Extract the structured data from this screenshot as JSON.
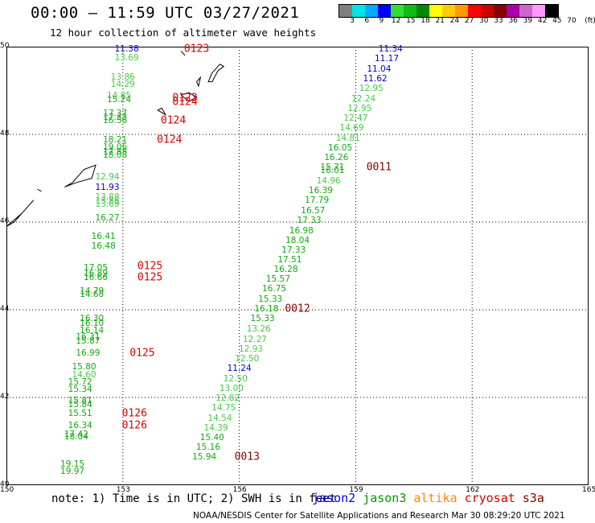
{
  "header": {
    "title": "00:00 – 11:59 UTC 03/27/2021",
    "subtitle": "12 hour collection of altimeter wave heights"
  },
  "colorbar": {
    "colors": [
      "#7f7f7f",
      "#00e5e5",
      "#00aaff",
      "#0000ff",
      "#33dd33",
      "#11bb11",
      "#008800",
      "#ffff00",
      "#ffcc00",
      "#ff9900",
      "#ff0000",
      "#cc0000",
      "#880000",
      "#aa00aa",
      "#cc66cc",
      "#ff99ff",
      "#000000"
    ],
    "labels": [
      "3",
      "6",
      "9",
      "12",
      "15",
      "18",
      "21",
      "24",
      "27",
      "30",
      "33",
      "36",
      "39",
      "42",
      "45",
      "70",
      "(ft)"
    ]
  },
  "chart_data": {
    "type": "scatter",
    "xlim": [
      150,
      165
    ],
    "ylim": [
      40,
      50
    ],
    "x_ticks": [
      "150",
      "153",
      "156",
      "159",
      "162",
      "165"
    ],
    "y_ticks": [
      "50",
      "48",
      "46",
      "44",
      "42",
      "40"
    ],
    "x_tick_values": [
      150,
      153,
      156,
      159,
      162,
      165
    ],
    "y_tick_values": [
      50,
      48,
      46,
      44,
      42,
      40
    ],
    "grid": true,
    "series": [
      {
        "name": "jason2",
        "color": "#0000ff",
        "points": []
      },
      {
        "name": "jason3",
        "color": "#009900",
        "points": []
      },
      {
        "name": "altika",
        "color": "#ff8800",
        "points": []
      },
      {
        "name": "cryosat",
        "color": "#dd0000",
        "points": []
      },
      {
        "name": "s3a",
        "color": "#880000",
        "points": []
      }
    ],
    "track_points": [
      {
        "lon": 153.1,
        "lat": 49.94,
        "v": "11.38",
        "c": "#0000cc"
      },
      {
        "lon": 153.1,
        "lat": 49.74,
        "v": "13.69",
        "c": "#44cc44"
      },
      {
        "lon": 153.0,
        "lat": 49.3,
        "v": "13.86",
        "c": "#44cc44"
      },
      {
        "lon": 153.0,
        "lat": 49.13,
        "v": "14.29",
        "c": "#44cc44"
      },
      {
        "lon": 152.9,
        "lat": 48.88,
        "v": "14.85",
        "c": "#44cc44"
      },
      {
        "lon": 152.9,
        "lat": 48.78,
        "v": "15.24",
        "c": "#11aa11"
      },
      {
        "lon": 152.8,
        "lat": 48.48,
        "v": "17.37",
        "c": "#11aa11"
      },
      {
        "lon": 152.8,
        "lat": 48.38,
        "v": "17.33",
        "c": "#11aa11"
      },
      {
        "lon": 152.8,
        "lat": 48.31,
        "v": "16.56",
        "c": "#11aa11"
      },
      {
        "lon": 152.8,
        "lat": 47.88,
        "v": "18.21",
        "c": "#11aa11"
      },
      {
        "lon": 152.8,
        "lat": 47.7,
        "v": "19.06",
        "c": "#11aa11"
      },
      {
        "lon": 152.8,
        "lat": 47.6,
        "v": "17.88",
        "c": "#11aa11"
      },
      {
        "lon": 152.8,
        "lat": 47.53,
        "v": "18.08",
        "c": "#11aa11"
      },
      {
        "lon": 152.6,
        "lat": 47.03,
        "v": "12.94",
        "c": "#44cc44"
      },
      {
        "lon": 152.6,
        "lat": 46.78,
        "v": "11.93",
        "c": "#0000cc"
      },
      {
        "lon": 152.6,
        "lat": 46.56,
        "v": "13.88",
        "c": "#44cc44"
      },
      {
        "lon": 152.6,
        "lat": 46.48,
        "v": "13.86",
        "c": "#44cc44"
      },
      {
        "lon": 152.6,
        "lat": 46.4,
        "v": "13.69",
        "c": "#44cc44"
      },
      {
        "lon": 152.6,
        "lat": 46.09,
        "v": "16.27",
        "c": "#11aa11"
      },
      {
        "lon": 152.5,
        "lat": 45.67,
        "v": "16.41",
        "c": "#11aa11"
      },
      {
        "lon": 152.5,
        "lat": 45.45,
        "v": "16.48",
        "c": "#11aa11"
      },
      {
        "lon": 152.3,
        "lat": 44.96,
        "v": "17.05",
        "c": "#11aa11"
      },
      {
        "lon": 152.3,
        "lat": 44.82,
        "v": "16.89",
        "c": "#11aa11"
      },
      {
        "lon": 152.3,
        "lat": 44.74,
        "v": "16.66",
        "c": "#11aa11"
      },
      {
        "lon": 152.2,
        "lat": 44.42,
        "v": "14.79",
        "c": "#11aa11"
      },
      {
        "lon": 152.2,
        "lat": 44.34,
        "v": "14.68",
        "c": "#11aa11"
      },
      {
        "lon": 152.2,
        "lat": 43.8,
        "v": "16.30",
        "c": "#11aa11"
      },
      {
        "lon": 152.2,
        "lat": 43.69,
        "v": "16.10",
        "c": "#11aa11"
      },
      {
        "lon": 152.2,
        "lat": 43.53,
        "v": "16.14",
        "c": "#11aa11"
      },
      {
        "lon": 152.1,
        "lat": 43.38,
        "v": "16.31",
        "c": "#11aa11"
      },
      {
        "lon": 152.1,
        "lat": 43.29,
        "v": "15.87",
        "c": "#11aa11"
      },
      {
        "lon": 152.1,
        "lat": 43.01,
        "v": "16.99",
        "c": "#11aa11"
      },
      {
        "lon": 152.0,
        "lat": 42.7,
        "v": "15.80",
        "c": "#11aa11"
      },
      {
        "lon": 152.0,
        "lat": 42.52,
        "v": "14.60",
        "c": "#44cc44"
      },
      {
        "lon": 151.9,
        "lat": 42.34,
        "v": "15.72",
        "c": "#11aa11"
      },
      {
        "lon": 151.9,
        "lat": 42.19,
        "v": "15.34",
        "c": "#11aa11"
      },
      {
        "lon": 151.9,
        "lat": 41.93,
        "v": "15.81",
        "c": "#11aa11"
      },
      {
        "lon": 151.9,
        "lat": 41.84,
        "v": "15.84",
        "c": "#11aa11"
      },
      {
        "lon": 151.9,
        "lat": 41.64,
        "v": "15.51",
        "c": "#11aa11"
      },
      {
        "lon": 151.9,
        "lat": 41.36,
        "v": "16.34",
        "c": "#11aa11"
      },
      {
        "lon": 151.8,
        "lat": 41.16,
        "v": "17.42",
        "c": "#11aa11"
      },
      {
        "lon": 151.8,
        "lat": 41.1,
        "v": "18.04",
        "c": "#11aa11"
      },
      {
        "lon": 151.7,
        "lat": 40.47,
        "v": "19.15",
        "c": "#11aa11"
      },
      {
        "lon": 151.7,
        "lat": 40.31,
        "v": "19.97",
        "c": "#11aa11"
      },
      {
        "lon": 159.9,
        "lat": 49.94,
        "v": "11.34",
        "c": "#0000cc"
      },
      {
        "lon": 159.8,
        "lat": 49.72,
        "v": "11.17",
        "c": "#0000cc"
      },
      {
        "lon": 159.6,
        "lat": 49.49,
        "v": "11.04",
        "c": "#0000cc"
      },
      {
        "lon": 159.5,
        "lat": 49.26,
        "v": "11.62",
        "c": "#0000cc"
      },
      {
        "lon": 159.4,
        "lat": 49.04,
        "v": "12.95",
        "c": "#44cc44"
      },
      {
        "lon": 159.2,
        "lat": 48.81,
        "v": "12.24",
        "c": "#44cc44"
      },
      {
        "lon": 159.1,
        "lat": 48.59,
        "v": "12.95",
        "c": "#44cc44"
      },
      {
        "lon": 159.0,
        "lat": 48.36,
        "v": "12.47",
        "c": "#44cc44"
      },
      {
        "lon": 158.9,
        "lat": 48.14,
        "v": "14.69",
        "c": "#44cc44"
      },
      {
        "lon": 158.8,
        "lat": 47.91,
        "v": "14.81",
        "c": "#44cc44"
      },
      {
        "lon": 158.6,
        "lat": 47.69,
        "v": "16.05",
        "c": "#11aa11"
      },
      {
        "lon": 158.5,
        "lat": 47.46,
        "v": "16.26",
        "c": "#11aa11"
      },
      {
        "lon": 158.4,
        "lat": 47.24,
        "v": "15.71",
        "c": "#11aa11"
      },
      {
        "lon": 158.4,
        "lat": 47.17,
        "v": "16.01",
        "c": "#11aa11"
      },
      {
        "lon": 158.3,
        "lat": 46.94,
        "v": "14.96",
        "c": "#44cc44"
      },
      {
        "lon": 158.1,
        "lat": 46.71,
        "v": "16.39",
        "c": "#11aa11"
      },
      {
        "lon": 158.0,
        "lat": 46.49,
        "v": "17.79",
        "c": "#11aa11"
      },
      {
        "lon": 157.9,
        "lat": 46.26,
        "v": "16.57",
        "c": "#11aa11"
      },
      {
        "lon": 157.8,
        "lat": 46.03,
        "v": "17.33",
        "c": "#11aa11"
      },
      {
        "lon": 157.6,
        "lat": 45.8,
        "v": "16.98",
        "c": "#11aa11"
      },
      {
        "lon": 157.5,
        "lat": 45.57,
        "v": "18.04",
        "c": "#11aa11"
      },
      {
        "lon": 157.4,
        "lat": 45.35,
        "v": "17.33",
        "c": "#11aa11"
      },
      {
        "lon": 157.3,
        "lat": 45.13,
        "v": "17.51",
        "c": "#11aa11"
      },
      {
        "lon": 157.2,
        "lat": 44.92,
        "v": "16.28",
        "c": "#11aa11"
      },
      {
        "lon": 157.0,
        "lat": 44.69,
        "v": "15.57",
        "c": "#11aa11"
      },
      {
        "lon": 156.9,
        "lat": 44.47,
        "v": "16.75",
        "c": "#11aa11"
      },
      {
        "lon": 156.8,
        "lat": 44.24,
        "v": "15.33",
        "c": "#11aa11"
      },
      {
        "lon": 156.7,
        "lat": 44.02,
        "v": "16.18",
        "c": "#11aa11"
      },
      {
        "lon": 156.6,
        "lat": 43.79,
        "v": "15.33",
        "c": "#11aa11"
      },
      {
        "lon": 156.5,
        "lat": 43.56,
        "v": "13.26",
        "c": "#44cc44"
      },
      {
        "lon": 156.4,
        "lat": 43.33,
        "v": "12.27",
        "c": "#44cc44"
      },
      {
        "lon": 156.3,
        "lat": 43.11,
        "v": "12.93",
        "c": "#44cc44"
      },
      {
        "lon": 156.2,
        "lat": 42.88,
        "v": "12.50",
        "c": "#44cc44"
      },
      {
        "lon": 156.0,
        "lat": 42.66,
        "v": "11.24",
        "c": "#0000cc"
      },
      {
        "lon": 155.9,
        "lat": 42.43,
        "v": "12.50",
        "c": "#44cc44"
      },
      {
        "lon": 155.8,
        "lat": 42.21,
        "v": "13.00",
        "c": "#44cc44"
      },
      {
        "lon": 155.7,
        "lat": 41.98,
        "v": "12.82",
        "c": "#44cc44"
      },
      {
        "lon": 155.6,
        "lat": 41.76,
        "v": "14.75",
        "c": "#44cc44"
      },
      {
        "lon": 155.5,
        "lat": 41.53,
        "v": "14.54",
        "c": "#44cc44"
      },
      {
        "lon": 155.4,
        "lat": 41.31,
        "v": "14.39",
        "c": "#44cc44"
      },
      {
        "lon": 155.3,
        "lat": 41.09,
        "v": "15.40",
        "c": "#11aa11"
      },
      {
        "lon": 155.2,
        "lat": 40.86,
        "v": "15.16",
        "c": "#11aa11"
      },
      {
        "lon": 155.1,
        "lat": 40.64,
        "v": "15.94",
        "c": "#11aa11"
      }
    ],
    "day_labels": [
      {
        "lon": 154.9,
        "lat": 49.94,
        "v": "0123",
        "c": "#dd0000"
      },
      {
        "lon": 154.6,
        "lat": 48.82,
        "v": "0123",
        "c": "#dd0000"
      },
      {
        "lon": 154.6,
        "lat": 48.74,
        "v": "0124",
        "c": "#dd0000"
      },
      {
        "lon": 154.3,
        "lat": 48.31,
        "v": "0124",
        "c": "#dd0000"
      },
      {
        "lon": 154.2,
        "lat": 47.88,
        "v": "0124",
        "c": "#dd0000"
      },
      {
        "lon": 153.7,
        "lat": 45.0,
        "v": "0125",
        "c": "#dd0000"
      },
      {
        "lon": 153.7,
        "lat": 44.74,
        "v": "0125",
        "c": "#dd0000"
      },
      {
        "lon": 153.5,
        "lat": 43.01,
        "v": "0125",
        "c": "#dd0000"
      },
      {
        "lon": 153.3,
        "lat": 41.64,
        "v": "0126",
        "c": "#dd0000"
      },
      {
        "lon": 153.3,
        "lat": 41.36,
        "v": "0126",
        "c": "#dd0000"
      },
      {
        "lon": 159.6,
        "lat": 47.24,
        "v": "0011",
        "c": "#880000"
      },
      {
        "lon": 157.5,
        "lat": 44.02,
        "v": "0012",
        "c": "#880000"
      },
      {
        "lon": 156.2,
        "lat": 40.64,
        "v": "0013",
        "c": "#880000"
      }
    ]
  },
  "footer": {
    "note": "note: 1) Time is in UTC; 2) SWH is in feet",
    "legend": [
      {
        "label": "jason2",
        "color": "#0000ff"
      },
      {
        "label": "jason3",
        "color": "#009900"
      },
      {
        "label": "altika",
        "color": "#ff8800"
      },
      {
        "label": "cryosat",
        "color": "#dd0000"
      },
      {
        "label": "s3a",
        "color": "#880000"
      }
    ],
    "credit": "NOAA/NESDIS Center for Satellite Applications and Research   Mar 30 08:29:20 UTC 2021"
  }
}
